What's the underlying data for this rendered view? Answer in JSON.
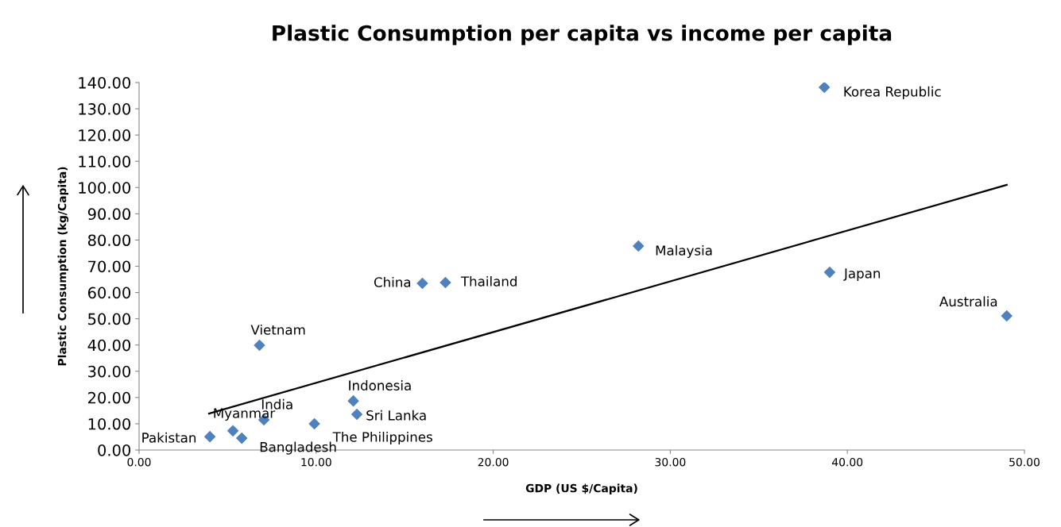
{
  "chart_data": {
    "type": "scatter",
    "title": "Plastic Consumption per capita vs income per capita",
    "xlabel": "GDP (US $/Capita)",
    "ylabel": "Plastic Consumption (kg/Capita)",
    "series": [
      {
        "color": "#4f81bd",
        "marker": "diamond",
        "x": [
          4.0,
          5.3,
          5.8,
          7.05,
          6.8,
          9.9,
          12.1,
          12.3,
          16.0,
          17.3,
          28.2,
          38.7,
          39.0,
          49.0
        ],
        "values": [
          5.1,
          7.3,
          4.5,
          11.5,
          39.9,
          10.0,
          18.7,
          13.6,
          63.5,
          63.8,
          77.7,
          138.2,
          67.7,
          51.1
        ]
      },
      {
        "type": "line",
        "color": "#000000",
        "marker": "none",
        "line_style": "solid",
        "x": [
          3.95,
          49.0
        ],
        "values": [
          13.9,
          101.0
        ]
      }
    ],
    "annotations": [
      {
        "text": "Pakistan",
        "x": 4.0,
        "y": 5.1
      },
      {
        "text": "Myanmar",
        "x": 5.3,
        "y": 7.3
      },
      {
        "text": "Bangladesh",
        "x": 5.8,
        "y": 4.5
      },
      {
        "text": "India",
        "x": 7.05,
        "y": 11.5
      },
      {
        "text": "Vietnam",
        "x": 6.8,
        "y": 39.9
      },
      {
        "text": "The Philippines",
        "x": 9.9,
        "y": 10.0
      },
      {
        "text": "Indonesia",
        "x": 12.1,
        "y": 18.7
      },
      {
        "text": "Sri Lanka",
        "x": 12.3,
        "y": 13.6
      },
      {
        "text": "China",
        "x": 16.0,
        "y": 63.5
      },
      {
        "text": "Thailand",
        "x": 17.3,
        "y": 63.8
      },
      {
        "text": "Malaysia",
        "x": 28.2,
        "y": 77.7
      },
      {
        "text": "Korea Republic",
        "x": 38.7,
        "y": 138.2
      },
      {
        "text": "Japan",
        "x": 39.0,
        "y": 67.7
      },
      {
        "text": "Australia",
        "x": 49.0,
        "y": 51.1
      }
    ],
    "xlim": [
      0,
      50
    ],
    "xticks": [
      {
        "value": 0,
        "label": "0.00"
      },
      {
        "value": 10,
        "label": "10.00"
      },
      {
        "value": 20,
        "label": "20.00"
      },
      {
        "value": 30,
        "label": "30.00"
      },
      {
        "value": 40,
        "label": "40.00"
      },
      {
        "value": 50,
        "label": "50.00"
      }
    ],
    "ylim": [
      0,
      140
    ],
    "yticks": [
      {
        "value": 0,
        "label": "0.00"
      },
      {
        "value": 10,
        "label": "10.00"
      },
      {
        "value": 20,
        "label": "20.00"
      },
      {
        "value": 30,
        "label": "30.00"
      },
      {
        "value": 40,
        "label": "40.00"
      },
      {
        "value": 50,
        "label": "50.00"
      },
      {
        "value": 60,
        "label": "60.00"
      },
      {
        "value": 70,
        "label": "70.00"
      },
      {
        "value": 80,
        "label": "80.00"
      },
      {
        "value": 90,
        "label": "90.00"
      },
      {
        "value": 100,
        "label": "100.00"
      },
      {
        "value": 110,
        "label": "110.00"
      },
      {
        "value": 120,
        "label": "120.00"
      },
      {
        "value": 130,
        "label": "130.00"
      },
      {
        "value": 140,
        "label": "140.00"
      }
    ],
    "grid": false,
    "legend": false
  }
}
